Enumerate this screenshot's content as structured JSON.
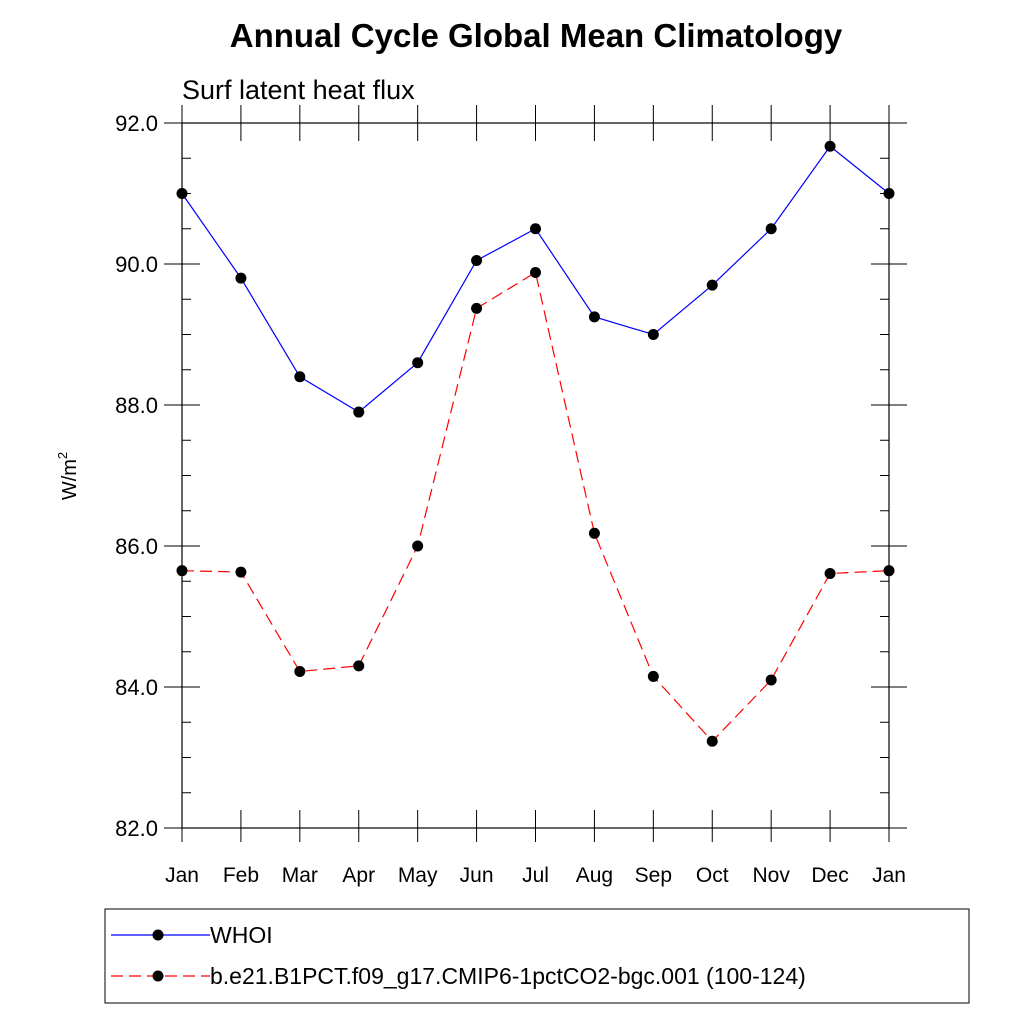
{
  "chart_data": {
    "type": "line",
    "title": "Annual Cycle Global Mean Climatology",
    "subtitle": "Surf latent heat flux",
    "ylabel": "W/m",
    "ylabel_sup": "2",
    "ylim": [
      82.0,
      92.0
    ],
    "yticks": [
      "82.0",
      "84.0",
      "86.0",
      "88.0",
      "90.0",
      "92.0"
    ],
    "categories": [
      "Jan",
      "Feb",
      "Mar",
      "Apr",
      "May",
      "Jun",
      "Jul",
      "Aug",
      "Sep",
      "Oct",
      "Nov",
      "Dec",
      "Jan"
    ],
    "series": [
      {
        "name": "WHOI",
        "color": "#0000ff",
        "dashed": false,
        "values": [
          91.0,
          89.8,
          88.4,
          87.9,
          88.6,
          90.05,
          90.5,
          89.25,
          89.0,
          89.7,
          90.5,
          91.67,
          91.0
        ]
      },
      {
        "name": "b.e21.B1PCT.f09_g17.CMIP6-1pctCO2-bgc.001 (100-124)",
        "color": "#ff0000",
        "dashed": true,
        "values": [
          85.65,
          85.63,
          84.22,
          84.3,
          86.0,
          89.37,
          89.88,
          86.18,
          84.15,
          83.23,
          84.1,
          85.61,
          85.65
        ]
      }
    ],
    "legend_position": "bottom"
  }
}
